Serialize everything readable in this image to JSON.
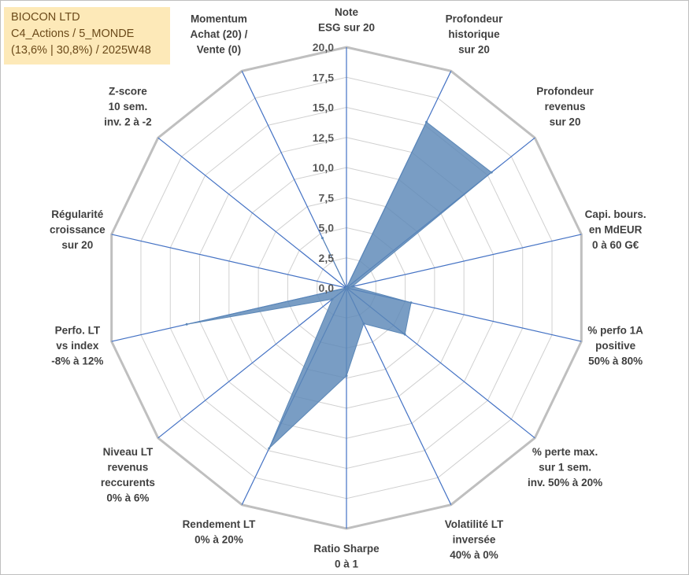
{
  "title_box": {
    "line1": "BIOCON LTD",
    "line2": "C4_Actions / 5_MONDE",
    "line3": "(13,6% | 30,8%) / 2025W48"
  },
  "chart_data": {
    "type": "radar",
    "title": "BIOCON LTD",
    "rmin": 0,
    "rmax": 20,
    "ticks": [
      "0,0",
      "2,5",
      "5,0",
      "7,5",
      "10,0",
      "12,5",
      "15,0",
      "17,5",
      "20,0"
    ],
    "tick_values": [
      0,
      2.5,
      5,
      7.5,
      10,
      12.5,
      15,
      17.5,
      20
    ],
    "grid_rings": [
      0,
      2.5,
      5,
      7.5,
      10,
      12.5,
      15,
      17.5,
      20
    ],
    "categories": [
      [
        "Note",
        "ESG sur 20"
      ],
      [
        "Profondeur",
        "historique",
        "sur 20"
      ],
      [
        "Profondeur",
        "revenus",
        "sur 20"
      ],
      [
        "Capi. bours.",
        "en MdEUR",
        "0 à 60 G€"
      ],
      [
        "% perfo 1A",
        "positive",
        "50% à 80%"
      ],
      [
        "% perte max.",
        "sur 1 sem.",
        "inv. 50% à 20%"
      ],
      [
        "Volatilité LT",
        "inversée",
        "40% à 0%"
      ],
      [
        "Ratio Sharpe",
        "0 à 1"
      ],
      [
        "Rendement LT",
        "0% à 20%"
      ],
      [
        "Niveau LT",
        "revenus",
        "reccurents",
        "0% à 6%"
      ],
      [
        "Perfo. LT",
        "vs index",
        "-8% à 12%"
      ],
      [
        "Régularité",
        "croissance",
        "sur 20"
      ],
      [
        "Z-score",
        "10 sem.",
        "inv. 2 à -2"
      ],
      [
        "Momentum",
        "Achat (20) /",
        "Vente (0)"
      ]
    ],
    "series": [
      {
        "name": "BIOCON LTD",
        "color": "#5b87b7",
        "values": [
          0,
          15.3,
          15.4,
          0.5,
          5.5,
          6.2,
          3.3,
          7.3,
          14.8,
          1.5,
          13.6,
          0,
          0,
          4.6
        ]
      }
    ],
    "colors": {
      "grid": "#d0d0d0",
      "outer": "#bfbfbf",
      "spoke": "#4472c4",
      "fill": "#5b87b7"
    }
  }
}
